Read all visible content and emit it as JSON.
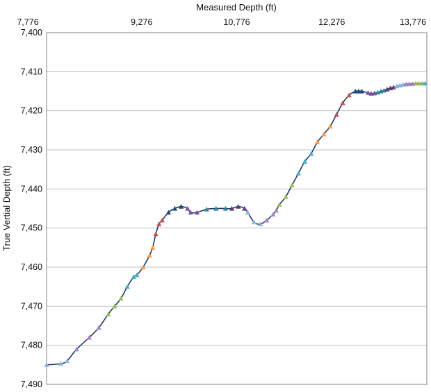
{
  "chart_data": {
    "type": "line",
    "title": "",
    "xlabel": "Measured Depth (ft)",
    "ylabel": "True Vertial Depth (ft)",
    "x_axis_position": "top",
    "y_axis_inverted": true,
    "xlim": [
      7776,
      13776
    ],
    "ylim": [
      7400,
      7490
    ],
    "xticks": [
      7776,
      9276,
      10776,
      12276,
      13776
    ],
    "xtick_labels": [
      "7,776",
      "9,276",
      "10,776",
      "12,276",
      "13,776"
    ],
    "yticks": [
      7400,
      7410,
      7420,
      7430,
      7440,
      7450,
      7460,
      7470,
      7480,
      7490
    ],
    "ytick_labels": [
      "7,400",
      "7,410",
      "7,420",
      "7,430",
      "7,440",
      "7,450",
      "7,460",
      "7,470",
      "7,480",
      "7,490"
    ],
    "grid": "horizontal",
    "legend": "none",
    "line_color": "#1f3864",
    "marker": "triangle",
    "marker_colors": [
      "#8db3e2",
      "#a084c4",
      "#9bbb59",
      "#4bacc6",
      "#f79646",
      "#c0504d",
      "#1f497d",
      "#7f4f9f",
      "#31859c",
      "#5c3a78"
    ],
    "series": [
      {
        "x": [
          7776,
          8000,
          8100,
          8250,
          8450,
          8600,
          8750,
          8850,
          8950,
          9050,
          9150,
          9200,
          9300,
          9400,
          9450,
          9500,
          9550,
          9600,
          9700,
          9800,
          9900,
          10000,
          10050,
          10150,
          10300,
          10450,
          10600,
          10700,
          10800,
          10900,
          10950,
          11050,
          11150,
          11250,
          11350,
          11400,
          11450,
          11550,
          11650,
          11750,
          11850,
          11950,
          12050,
          12150,
          12250,
          12350,
          12450,
          12550,
          12650,
          12700,
          12750,
          12850,
          12900,
          12950,
          13000,
          13050,
          13100,
          13150,
          13200,
          13250,
          13300,
          13350,
          13400,
          13450,
          13500,
          13550,
          13600,
          13650,
          13700,
          13750
        ],
        "y": [
          7485,
          7484.7,
          7484,
          7481,
          7478,
          7475.5,
          7472,
          7470,
          7468,
          7465,
          7462.5,
          7462,
          7460,
          7457,
          7455,
          7451.5,
          7449,
          7448,
          7446,
          7445,
          7444.5,
          7445,
          7446,
          7446,
          7445.2,
          7445,
          7445,
          7445,
          7444.5,
          7445,
          7446,
          7448.5,
          7449,
          7448,
          7446.5,
          7445.5,
          7444,
          7442,
          7439,
          7436,
          7433,
          7431,
          7428,
          7426,
          7424,
          7421,
          7418,
          7416,
          7415,
          7415,
          7415,
          7415.4,
          7415.6,
          7415.5,
          7415.3,
          7415,
          7414.8,
          7414.5,
          7414.2,
          7414,
          7413.7,
          7413.5,
          7413.3,
          7413.2,
          7413.1,
          7413.1,
          7413,
          7413,
          7413,
          7413
        ]
      }
    ]
  }
}
